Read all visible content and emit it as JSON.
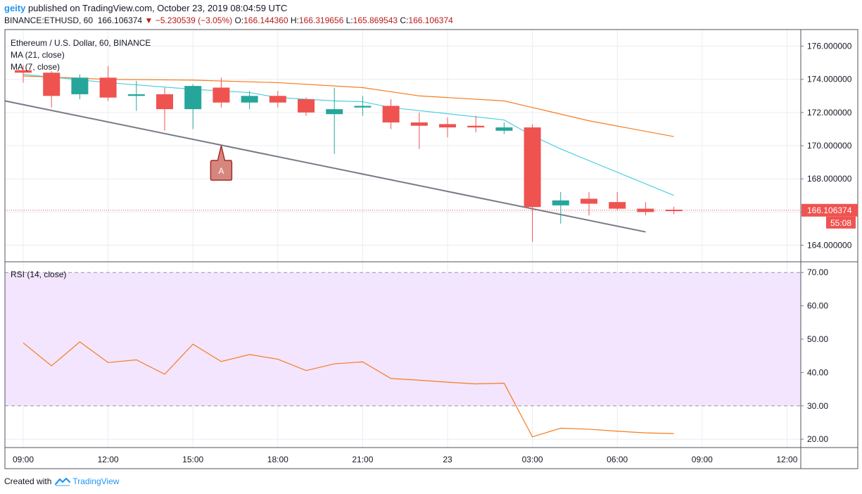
{
  "header": {
    "user": "geity",
    "published_text": " published on TradingView.com, October 23, 2019 08:04:59 UTC",
    "symbol": "BINANCE:ETHUSD, 60",
    "last": "166.106374",
    "arrow": "▼",
    "change": "−5.230539 (−3.05%)",
    "o_label": "O:",
    "o": "166.144360",
    "h_label": "H:",
    "h": "166.319656",
    "l_label": "L:",
    "l": "165.869543",
    "c_label": "C:",
    "c": "166.106374"
  },
  "footer": {
    "created_with": "Created with",
    "brand": "TradingView"
  },
  "colors": {
    "up": "#26a69a",
    "down": "#ef5350",
    "ma21": "#f57c20",
    "ma7": "#4dd0e1",
    "trendline": "#787b86",
    "rsi": "#f57c20",
    "rsi_band": "#f3e5fd",
    "grid": "#e9ecf2"
  },
  "chart_data": [
    {
      "type": "candlestick",
      "title": "Ethereum / U.S. Dollar, 60, BINANCE",
      "ylim": [
        163,
        177
      ],
      "y_ticks": [
        "176.000000",
        "174.000000",
        "172.000000",
        "170.000000",
        "168.000000",
        "166.000000",
        "164.000000"
      ],
      "x_ticks": [
        "09:00",
        "12:00",
        "15:00",
        "18:00",
        "21:00",
        "23",
        "03:00",
        "06:00",
        "09:00",
        "12:00"
      ],
      "last_price_label": "166.106374",
      "countdown_label": "55:08",
      "candles": [
        {
          "t": "09:00",
          "o": 174.55,
          "h": 174.85,
          "l": 173.8,
          "c": 174.4
        },
        {
          "t": "10:00",
          "o": 174.4,
          "h": 174.5,
          "l": 172.3,
          "c": 173.0
        },
        {
          "t": "11:00",
          "o": 173.1,
          "h": 174.3,
          "l": 172.8,
          "c": 174.1
        },
        {
          "t": "12:00",
          "o": 174.1,
          "h": 174.8,
          "l": 172.7,
          "c": 172.9
        },
        {
          "t": "13:00",
          "o": 173.0,
          "h": 173.9,
          "l": 172.1,
          "c": 173.1
        },
        {
          "t": "14:00",
          "o": 173.1,
          "h": 173.5,
          "l": 170.9,
          "c": 172.2
        },
        {
          "t": "15:00",
          "o": 172.2,
          "h": 173.7,
          "l": 171.0,
          "c": 173.6
        },
        {
          "t": "16:00",
          "o": 173.5,
          "h": 174.1,
          "l": 172.3,
          "c": 172.6
        },
        {
          "t": "17:00",
          "o": 172.6,
          "h": 173.3,
          "l": 172.2,
          "c": 173.0
        },
        {
          "t": "18:00",
          "o": 173.0,
          "h": 173.3,
          "l": 172.3,
          "c": 172.6
        },
        {
          "t": "19:00",
          "o": 172.8,
          "h": 172.9,
          "l": 171.8,
          "c": 172.0
        },
        {
          "t": "20:00",
          "o": 171.9,
          "h": 173.5,
          "l": 169.5,
          "c": 172.2
        },
        {
          "t": "21:00",
          "o": 172.3,
          "h": 173.0,
          "l": 171.8,
          "c": 172.4
        },
        {
          "t": "22:00",
          "o": 172.4,
          "h": 172.8,
          "l": 171.0,
          "c": 171.4
        },
        {
          "t": "23:00",
          "o": 171.4,
          "h": 172.0,
          "l": 169.8,
          "c": 171.2
        },
        {
          "t": "00:00",
          "o": 171.3,
          "h": 171.7,
          "l": 170.5,
          "c": 171.1
        },
        {
          "t": "01:00",
          "o": 171.2,
          "h": 171.8,
          "l": 170.8,
          "c": 171.1
        },
        {
          "t": "02:00",
          "o": 170.9,
          "h": 171.4,
          "l": 170.7,
          "c": 171.1
        },
        {
          "t": "03:00",
          "o": 171.1,
          "h": 171.3,
          "l": 164.2,
          "c": 166.3
        },
        {
          "t": "04:00",
          "o": 166.4,
          "h": 167.2,
          "l": 165.3,
          "c": 166.7
        },
        {
          "t": "05:00",
          "o": 166.8,
          "h": 167.2,
          "l": 165.8,
          "c": 166.5
        },
        {
          "t": "06:00",
          "o": 166.6,
          "h": 167.2,
          "l": 166.1,
          "c": 166.2
        },
        {
          "t": "07:00",
          "o": 166.2,
          "h": 166.6,
          "l": 165.8,
          "c": 166.0
        },
        {
          "t": "08:00",
          "o": 166.14,
          "h": 166.32,
          "l": 165.87,
          "c": 166.11
        }
      ],
      "series": [
        {
          "name": "MA (21, close)",
          "x": [
            "09:00",
            "12:00",
            "15:00",
            "18:00",
            "21:00",
            "23:00",
            "02:00",
            "03:00",
            "05:00",
            "08:00"
          ],
          "values": [
            174.2,
            174.0,
            173.95,
            173.8,
            173.5,
            173.0,
            172.7,
            172.3,
            171.5,
            170.55
          ]
        },
        {
          "name": "MA (7, close)",
          "x": [
            "09:00",
            "12:00",
            "15:00",
            "17:00",
            "18:00",
            "20:00",
            "21:00",
            "22:00",
            "02:00",
            "03:00",
            "04:00",
            "08:00"
          ],
          "values": [
            174.3,
            173.8,
            173.4,
            173.2,
            172.9,
            172.7,
            172.65,
            172.3,
            171.55,
            170.6,
            169.8,
            167.0
          ]
        }
      ],
      "trendline": {
        "x1": "08:00",
        "y1": 172.7,
        "x2": "07:00",
        "y2": 164.8
      },
      "annotation": {
        "label": "A",
        "x": "16:00",
        "y": 170.0
      }
    },
    {
      "type": "line",
      "title": "RSI (14, close)",
      "ylim": [
        17.5,
        73
      ],
      "y_ticks": [
        "70.00",
        "60.00",
        "50.00",
        "40.00",
        "30.00",
        "20.00"
      ],
      "band": [
        30,
        70
      ],
      "x": [
        "09:00",
        "10:00",
        "11:00",
        "12:00",
        "13:00",
        "14:00",
        "15:00",
        "16:00",
        "17:00",
        "18:00",
        "19:00",
        "20:00",
        "21:00",
        "22:00",
        "23:00",
        "00:00",
        "01:00",
        "02:00",
        "03:00",
        "04:00",
        "05:00",
        "06:00",
        "07:00",
        "08:00"
      ],
      "values": [
        48.9,
        42.0,
        49.2,
        43.0,
        43.8,
        39.5,
        48.5,
        43.3,
        45.4,
        44.0,
        40.6,
        42.6,
        43.2,
        38.2,
        37.7,
        37.1,
        36.6,
        36.8,
        20.7,
        23.3,
        23.0,
        22.4,
        21.9,
        21.7
      ]
    }
  ]
}
